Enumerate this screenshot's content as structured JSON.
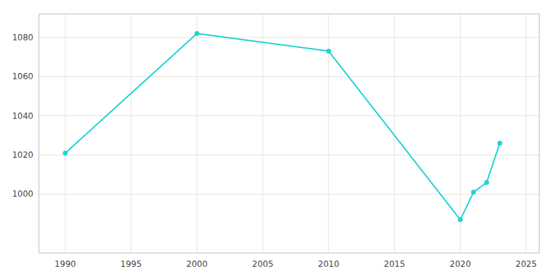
{
  "chart_data": {
    "type": "line",
    "x": [
      1990,
      2000,
      2010,
      2020,
      2021,
      2022,
      2023
    ],
    "values": [
      1021,
      1082,
      1073,
      987,
      1001,
      1006,
      1026
    ],
    "color": "#22d3d3",
    "marker": "circle",
    "xlim": [
      1988,
      2026
    ],
    "ylim": [
      970,
      1092
    ],
    "xticks": [
      1990,
      1995,
      2000,
      2005,
      2010,
      2015,
      2020,
      2025
    ],
    "yticks": [
      1000,
      1020,
      1040,
      1060,
      1080
    ],
    "grid": true
  }
}
